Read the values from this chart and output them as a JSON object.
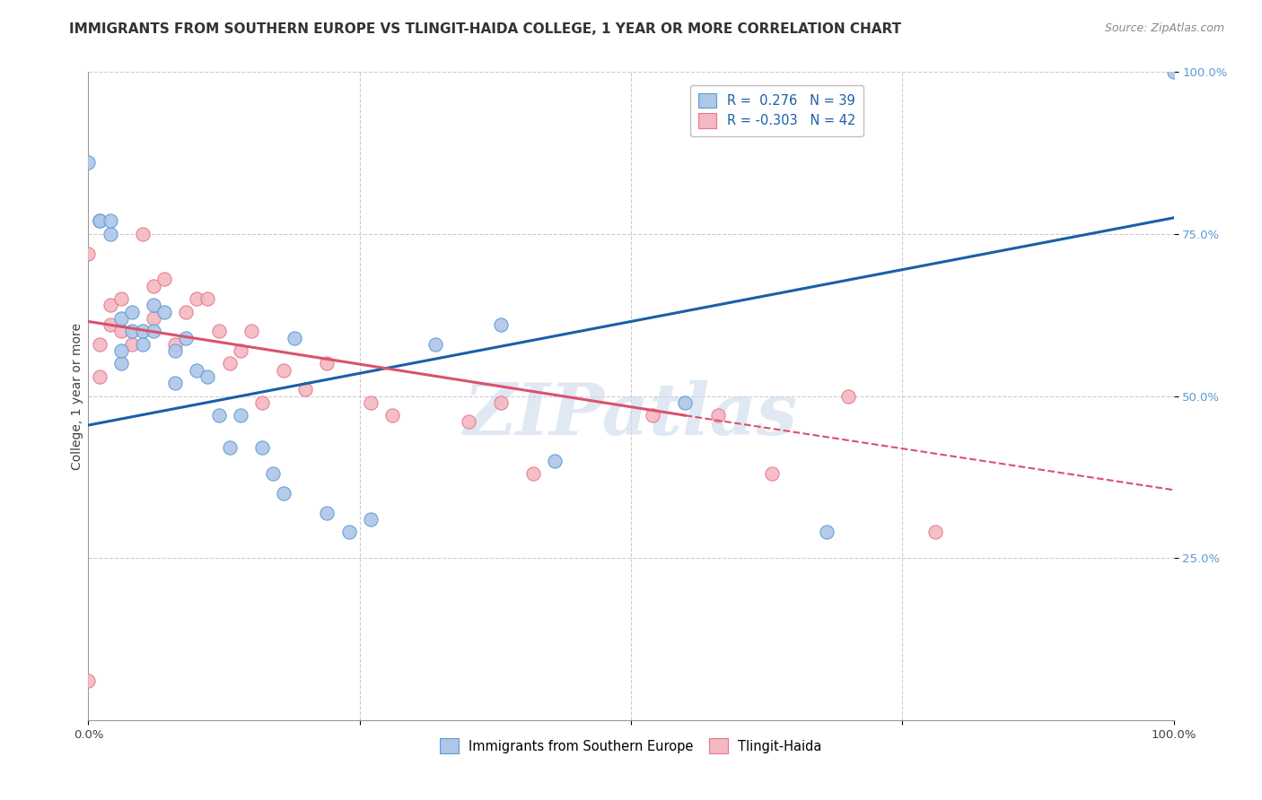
{
  "title": "IMMIGRANTS FROM SOUTHERN EUROPE VS TLINGIT-HAIDA COLLEGE, 1 YEAR OR MORE CORRELATION CHART",
  "source_text": "Source: ZipAtlas.com",
  "ylabel": "College, 1 year or more",
  "xlim": [
    0.0,
    1.0
  ],
  "ylim": [
    0.0,
    1.0
  ],
  "xticks": [
    0.0,
    0.25,
    0.5,
    0.75,
    1.0
  ],
  "xticklabels": [
    "0.0%",
    "",
    "",
    "",
    "100.0%"
  ],
  "ytick_positions": [
    0.25,
    0.5,
    0.75,
    1.0
  ],
  "ytick_labels": [
    "25.0%",
    "50.0%",
    "75.0%",
    "100.0%"
  ],
  "series_blue": {
    "face_color": "#aec6e8",
    "edge_color": "#5b9bd5",
    "x": [
      0.0,
      0.01,
      0.01,
      0.02,
      0.02,
      0.03,
      0.03,
      0.03,
      0.04,
      0.04,
      0.05,
      0.05,
      0.06,
      0.06,
      0.07,
      0.08,
      0.08,
      0.09,
      0.1,
      0.11,
      0.12,
      0.13,
      0.14,
      0.16,
      0.17,
      0.18,
      0.19,
      0.22,
      0.24,
      0.26,
      0.32,
      0.38,
      0.43,
      0.55,
      0.68,
      1.0
    ],
    "y": [
      0.86,
      0.77,
      0.77,
      0.75,
      0.77,
      0.55,
      0.62,
      0.57,
      0.63,
      0.6,
      0.6,
      0.58,
      0.64,
      0.6,
      0.63,
      0.52,
      0.57,
      0.59,
      0.54,
      0.53,
      0.47,
      0.42,
      0.47,
      0.42,
      0.38,
      0.35,
      0.59,
      0.32,
      0.29,
      0.31,
      0.58,
      0.61,
      0.4,
      0.49,
      0.29,
      1.0
    ],
    "trend_x0": 0.0,
    "trend_x1": 1.0,
    "trend_y0": 0.455,
    "trend_y1": 0.775
  },
  "series_pink": {
    "face_color": "#f4b8c1",
    "edge_color": "#e8768a",
    "x": [
      0.0,
      0.0,
      0.01,
      0.01,
      0.02,
      0.02,
      0.03,
      0.03,
      0.04,
      0.05,
      0.06,
      0.06,
      0.07,
      0.08,
      0.09,
      0.1,
      0.11,
      0.12,
      0.13,
      0.14,
      0.15,
      0.16,
      0.18,
      0.2,
      0.22,
      0.26,
      0.28,
      0.35,
      0.38,
      0.41,
      0.52,
      0.58,
      0.63,
      0.7,
      0.78
    ],
    "y": [
      0.72,
      0.06,
      0.58,
      0.53,
      0.64,
      0.61,
      0.65,
      0.6,
      0.58,
      0.75,
      0.67,
      0.62,
      0.68,
      0.58,
      0.63,
      0.65,
      0.65,
      0.6,
      0.55,
      0.57,
      0.6,
      0.49,
      0.54,
      0.51,
      0.55,
      0.49,
      0.47,
      0.46,
      0.49,
      0.38,
      0.47,
      0.47,
      0.38,
      0.5,
      0.29
    ],
    "trend_x0": 0.0,
    "trend_x1": 0.55,
    "trend_x1_dash": 1.0,
    "trend_y0": 0.615,
    "trend_y1": 0.47,
    "trend_y1_dash": 0.355
  },
  "watermark_text": "ZIPatlas",
  "background_color": "#ffffff",
  "grid_color": "#cccccc",
  "title_color": "#333333",
  "title_fontsize": 11,
  "label_fontsize": 10,
  "tick_fontsize": 9.5,
  "source_fontsize": 9,
  "scatter_size": 120,
  "trend_blue_color": "#1a5fa8",
  "trend_pink_color": "#d9526e",
  "ytick_color": "#5b9bd5",
  "legend_box_color": "#c0c0c0"
}
